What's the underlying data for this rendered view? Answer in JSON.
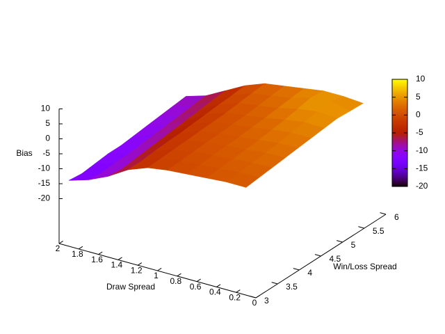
{
  "chart_data": {
    "type": "surface",
    "xlabel": "Draw Spread",
    "ylabel": "Win/Loss Spread",
    "zlabel": "Bias",
    "x": [
      0.1,
      0.3,
      0.5,
      0.7,
      0.9,
      1.1,
      1.3,
      1.5,
      1.7,
      1.9
    ],
    "y": [
      3,
      3.3,
      3.6,
      3.9,
      4.2,
      4.5,
      4.8,
      5.1,
      5.4,
      5.7
    ],
    "z": [
      [
        1,
        1,
        0.5,
        0,
        -0.5,
        -1.5,
        -4,
        -8,
        -11,
        -13
      ],
      [
        1.5,
        1.4,
        0.8,
        0.3,
        -0.3,
        -1.3,
        -4,
        -8.5,
        -11.5,
        -13.5
      ],
      [
        2,
        1.8,
        1.2,
        0.7,
        0,
        -1,
        -3.5,
        -8,
        -11,
        -13
      ],
      [
        2.5,
        2.3,
        1.6,
        1,
        0.3,
        -0.8,
        -3.2,
        -7.5,
        -11,
        -12.5
      ],
      [
        3,
        2.8,
        2,
        1.2,
        0.5,
        -0.5,
        -3,
        -7,
        -10.5,
        -12.5
      ],
      [
        3.5,
        3.5,
        2.6,
        1.6,
        0.8,
        -0.3,
        -2.6,
        -6.5,
        -10,
        -12
      ],
      [
        4,
        4.2,
        3.2,
        2,
        1,
        0,
        -2.2,
        -6,
        -9.5,
        -11.5
      ],
      [
        4.5,
        5,
        4,
        2.5,
        1.5,
        0.5,
        -1.8,
        -5.5,
        -9,
        -11
      ],
      [
        4.2,
        5.5,
        5,
        3,
        2,
        1,
        -1.5,
        -5,
        -8.5,
        -10.5
      ],
      [
        4,
        4.5,
        4.5,
        3.5,
        2.5,
        1.5,
        -1,
        -4.5,
        -8,
        -10
      ]
    ],
    "xlim": [
      0,
      2
    ],
    "ylim": [
      3,
      6
    ],
    "zlim": [
      -20,
      10
    ],
    "xticks": [
      0,
      0.2,
      0.4,
      0.6,
      0.8,
      1,
      1.2,
      1.4,
      1.6,
      1.8,
      2
    ],
    "yticks": [
      3,
      3.5,
      4,
      4.5,
      5,
      5.5,
      6
    ],
    "zticks": [
      -20,
      -15,
      -10,
      -5,
      0,
      5,
      10
    ],
    "cblim": [
      -20,
      10
    ],
    "cbticks": [
      -20,
      -15,
      -10,
      -5,
      0,
      5,
      10
    ]
  }
}
